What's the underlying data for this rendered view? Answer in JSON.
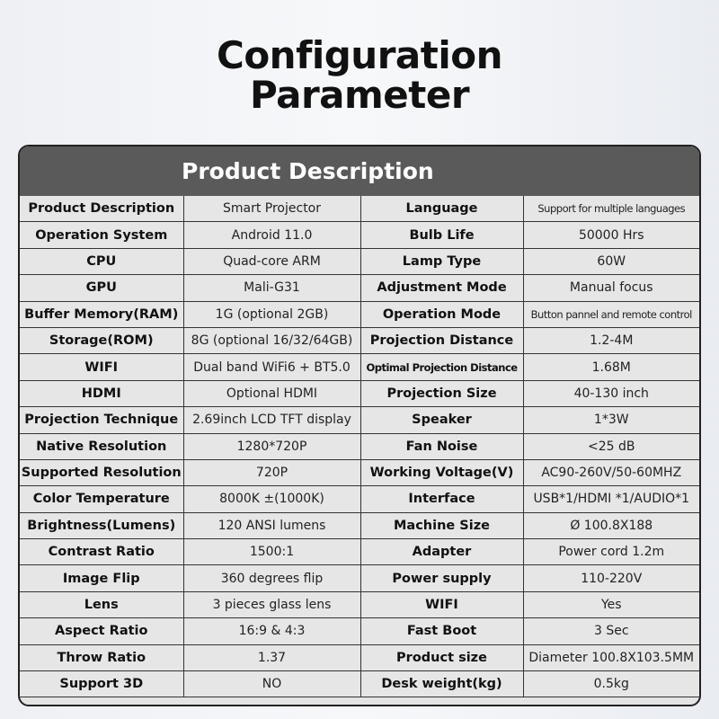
{
  "title_line1": "Configuration",
  "title_line2": "Parameter",
  "table_header": "Product Description",
  "rows": [
    {
      "k1": "Product Description",
      "v1": "Smart Projector",
      "k2": "Language",
      "v2": "Support for multiple languages"
    },
    {
      "k1": "Operation System",
      "v1": "Android 11.0",
      "k2": "Bulb Life",
      "v2": "50000 Hrs"
    },
    {
      "k1": "CPU",
      "v1": "Quad-core ARM",
      "k2": "Lamp Type",
      "v2": "60W"
    },
    {
      "k1": "GPU",
      "v1": "Mali-G31",
      "k2": "Adjustment Mode",
      "v2": "Manual focus"
    },
    {
      "k1": "Buffer Memory(RAM)",
      "v1": "1G (optional 2GB)",
      "k2": "Operation Mode",
      "v2": "Button pannel and remote control"
    },
    {
      "k1": "Storage(ROM)",
      "v1": "8G (optional 16/32/64GB)",
      "k2": "Projection Distance",
      "v2": "1.2-4M"
    },
    {
      "k1": "WIFI",
      "v1": "Dual band WiFi6 + BT5.0",
      "k2": "Optimal Projection Distance",
      "v2": "1.68M"
    },
    {
      "k1": "HDMI",
      "v1": "Optional HDMI",
      "k2": "Projection Size",
      "v2": "40-130 inch"
    },
    {
      "k1": "Projection Technique",
      "v1": "2.69inch LCD TFT display",
      "k2": "Speaker",
      "v2": "1*3W"
    },
    {
      "k1": "Native Resolution",
      "v1": "1280*720P",
      "k2": "Fan Noise",
      "v2": "<25 dB"
    },
    {
      "k1": "Supported Resolution",
      "v1": "720P",
      "k2": "Working Voltage(V)",
      "v2": "AC90-260V/50-60MHZ"
    },
    {
      "k1": "Color Temperature",
      "v1": "8000K ±(1000K)",
      "k2": "Interface",
      "v2": "USB*1/HDMI *1/AUDIO*1"
    },
    {
      "k1": "Brightness(Lumens)",
      "v1": "120 ANSI lumens",
      "k2": "Machine Size",
      "v2": "Ø 100.8X188"
    },
    {
      "k1": "Contrast Ratio",
      "v1": "1500:1",
      "k2": "Adapter",
      "v2": "Power cord 1.2m"
    },
    {
      "k1": "Image Flip",
      "v1": "360 degrees flip",
      "k2": "Power supply",
      "v2": "110-220V"
    },
    {
      "k1": "Lens",
      "v1": "3 pieces glass lens",
      "k2": "WIFI",
      "v2": "Yes"
    },
    {
      "k1": "Aspect Ratio",
      "v1": "16:9 & 4:3",
      "k2": "Fast Boot",
      "v2": "3 Sec"
    },
    {
      "k1": "Throw Ratio",
      "v1": "1.37",
      "k2": "Product size",
      "v2": "Diameter 100.8X103.5MM"
    },
    {
      "k1": "Support 3D",
      "v1": "NO",
      "k2": "Desk weight(kg)",
      "v2": "0.5kg"
    }
  ]
}
